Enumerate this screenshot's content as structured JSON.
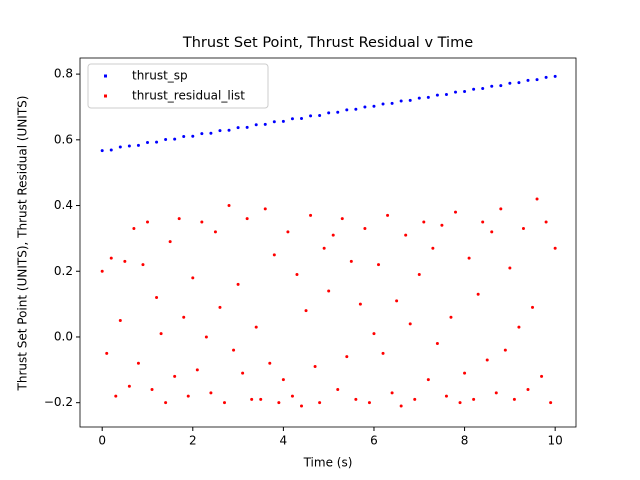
{
  "chart_data": {
    "type": "scatter",
    "title": "Thrust Set Point, Thrust Residual v Time",
    "x_label": "Time (s)",
    "y_label": "Thrust Set Point (UNITS), Thrust Residual (UNITS)",
    "xlim": [
      -0.49,
      10.46
    ],
    "ylim": [
      -0.274,
      0.849
    ],
    "xticks": [
      0,
      2,
      4,
      6,
      8,
      10
    ],
    "yticks": [
      {
        "value": -0.2,
        "label": "−0.2"
      },
      {
        "value": 0,
        "label": "0.0"
      },
      0.2,
      0.4,
      0.6,
      0.8
    ],
    "legend": "upper left",
    "series": [
      {
        "name": "thrust_sp",
        "color": "#0000ff",
        "x": [
          0,
          0.2,
          0.4,
          0.6,
          0.8,
          1,
          1.2,
          1.4,
          1.6,
          1.8,
          2,
          2.2,
          2.4,
          2.6,
          2.8,
          3,
          3.2,
          3.4,
          3.6,
          3.8,
          4,
          4.2,
          4.4,
          4.6,
          4.8,
          5,
          5.2,
          5.4,
          5.6,
          5.8,
          6,
          6.2,
          6.4,
          6.6,
          6.8,
          7,
          7.2,
          7.4,
          7.6,
          7.8,
          8,
          8.2,
          8.4,
          8.6,
          8.8,
          9,
          9.2,
          9.4,
          9.6,
          9.8,
          10
        ],
        "values": [
          0.567,
          0.569,
          0.578,
          0.581,
          0.583,
          0.592,
          0.593,
          0.601,
          0.602,
          0.61,
          0.611,
          0.619,
          0.62,
          0.628,
          0.629,
          0.637,
          0.638,
          0.646,
          0.647,
          0.655,
          0.656,
          0.664,
          0.665,
          0.673,
          0.674,
          0.682,
          0.684,
          0.691,
          0.693,
          0.7,
          0.702,
          0.709,
          0.711,
          0.718,
          0.72,
          0.727,
          0.729,
          0.736,
          0.738,
          0.745,
          0.747,
          0.754,
          0.756,
          0.763,
          0.765,
          0.772,
          0.774,
          0.781,
          0.783,
          0.79,
          0.793
        ]
      },
      {
        "name": "thrust_residual_list",
        "color": "#ff0000",
        "x": [
          0,
          0.1,
          0.2,
          0.3,
          0.4,
          0.5,
          0.6,
          0.7,
          0.8,
          0.9,
          1,
          1.1,
          1.2,
          1.3,
          1.4,
          1.5,
          1.6,
          1.7,
          1.8,
          1.9,
          2,
          2.1,
          2.2,
          2.3,
          2.4,
          2.5,
          2.6,
          2.7,
          2.8,
          2.9,
          3,
          3.1,
          3.2,
          3.3,
          3.4,
          3.5,
          3.6,
          3.7,
          3.8,
          3.9,
          4,
          4.1,
          4.2,
          4.3,
          4.4,
          4.5,
          4.6,
          4.7,
          4.8,
          4.9,
          5,
          5.1,
          5.2,
          5.3,
          5.4,
          5.5,
          5.6,
          5.7,
          5.8,
          5.9,
          6,
          6.1,
          6.2,
          6.3,
          6.4,
          6.5,
          6.6,
          6.7,
          6.8,
          6.9,
          7,
          7.1,
          7.2,
          7.3,
          7.4,
          7.5,
          7.6,
          7.7,
          7.8,
          7.9,
          8,
          8.1,
          8.2,
          8.3,
          8.4,
          8.5,
          8.6,
          8.7,
          8.8,
          8.9,
          9,
          9.1,
          9.2,
          9.3,
          9.4,
          9.5,
          9.6,
          9.7,
          9.8,
          9.9,
          10
        ],
        "values": [
          0.2,
          -0.05,
          0.24,
          -0.18,
          0.05,
          0.23,
          -0.15,
          0.33,
          -0.08,
          0.22,
          0.35,
          -0.16,
          0.12,
          0.01,
          -0.2,
          0.29,
          -0.12,
          0.36,
          0.06,
          -0.18,
          0.18,
          -0.1,
          0.35,
          0.0,
          -0.17,
          0.32,
          0.09,
          -0.2,
          0.4,
          -0.04,
          0.16,
          -0.11,
          0.36,
          -0.19,
          0.03,
          -0.19,
          0.39,
          -0.08,
          0.25,
          -0.2,
          -0.13,
          0.32,
          -0.18,
          0.19,
          -0.21,
          0.08,
          0.37,
          -0.09,
          -0.2,
          0.27,
          0.14,
          0.31,
          -0.16,
          0.36,
          -0.06,
          0.23,
          -0.19,
          0.1,
          0.33,
          -0.2,
          0.01,
          0.22,
          -0.05,
          0.37,
          -0.17,
          0.11,
          -0.21,
          0.31,
          0.04,
          -0.19,
          0.19,
          0.35,
          -0.13,
          0.27,
          -0.02,
          0.34,
          -0.18,
          0.06,
          0.38,
          -0.2,
          -0.11,
          0.24,
          -0.19,
          0.13,
          0.35,
          -0.07,
          0.32,
          -0.17,
          0.39,
          -0.04,
          0.21,
          -0.19,
          0.03,
          0.33,
          -0.16,
          0.09,
          0.42,
          -0.12,
          0.35,
          -0.2,
          0.27
        ]
      }
    ]
  }
}
